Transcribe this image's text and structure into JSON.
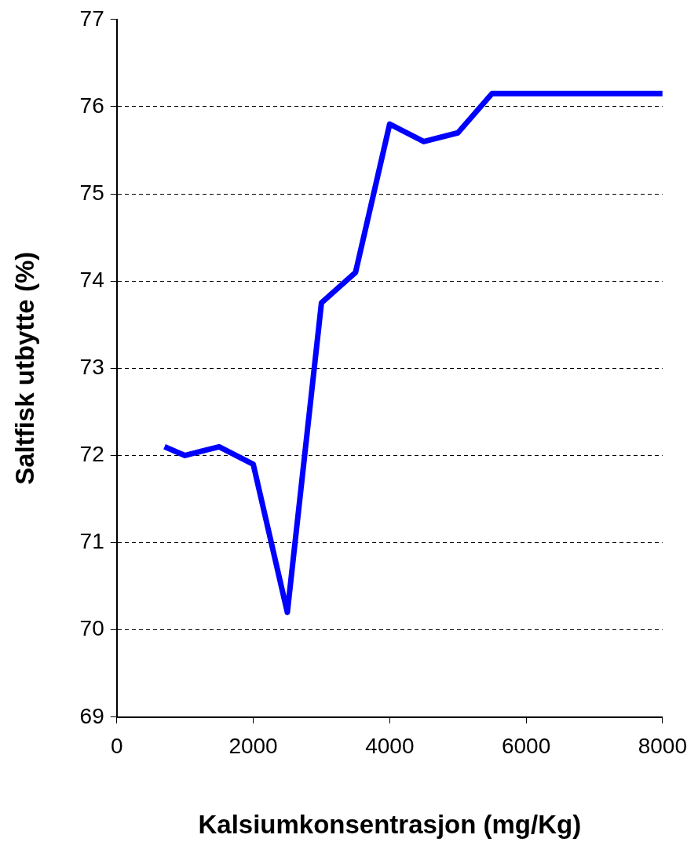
{
  "chart_data": {
    "type": "line",
    "xlabel": "Kalsiumkonsentrasjon (mg/Kg)",
    "ylabel": "Saltfisk utbytte (%)",
    "x": [
      700,
      1000,
      1500,
      2000,
      2500,
      3000,
      3500,
      4000,
      4500,
      5000,
      5500,
      8000
    ],
    "series": [
      {
        "color": "#0000ff",
        "values": [
          72.1,
          72.0,
          72.1,
          71.9,
          70.2,
          73.75,
          74.1,
          75.8,
          75.6,
          75.7,
          76.15,
          76.15
        ]
      }
    ],
    "xlim": [
      0,
      8000
    ],
    "xticks": [
      0,
      2000,
      4000,
      6000,
      8000
    ],
    "ylim": [
      69,
      77
    ],
    "yticks": [
      69,
      70,
      71,
      72,
      73,
      74,
      75,
      76,
      77
    ],
    "grid": "y",
    "legend": false,
    "marker": "none",
    "line_style": "solid"
  }
}
